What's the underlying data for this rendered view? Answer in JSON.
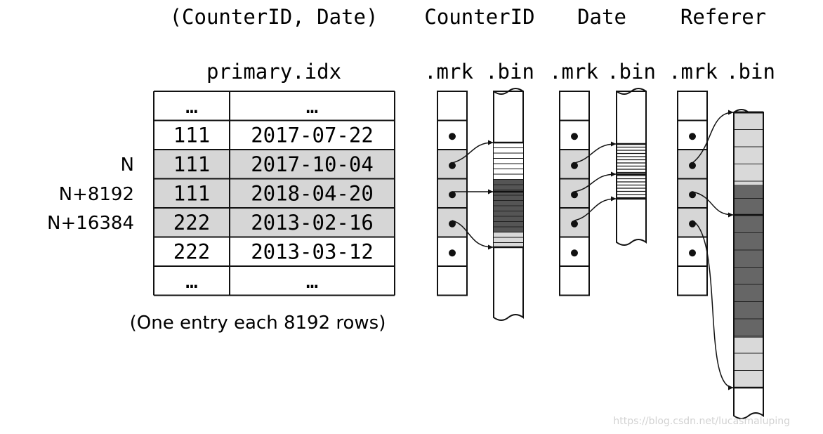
{
  "headers": {
    "index_key": "(CounterID, Date)",
    "primary_index_file": "primary.idx",
    "columns": [
      "CounterID",
      "Date",
      "Referer"
    ],
    "mrk_label": ".mrk",
    "bin_label": ".bin"
  },
  "row_labels": [
    "N",
    "N+8192",
    "N+16384"
  ],
  "index_rows": [
    {
      "counter_id": "…",
      "date": "…",
      "highlighted": false
    },
    {
      "counter_id": "111",
      "date": "2017-07-22",
      "highlighted": false
    },
    {
      "counter_id": "111",
      "date": "2017-10-04",
      "highlighted": true
    },
    {
      "counter_id": "111",
      "date": "2018-04-20",
      "highlighted": true
    },
    {
      "counter_id": "222",
      "date": "2013-02-16",
      "highlighted": true
    },
    {
      "counter_id": "222",
      "date": "2013-03-12",
      "highlighted": false
    },
    {
      "counter_id": "…",
      "date": "…",
      "highlighted": false
    }
  ],
  "caption": "(One entry each 8192 rows)",
  "watermark": "https://blog.csdn.net/lucasmaluping",
  "colors": {
    "highlight_fill": "#d6d6d6",
    "light_block": "#d9d9d9",
    "dark_block": "#666666",
    "stroke": "#111111"
  }
}
